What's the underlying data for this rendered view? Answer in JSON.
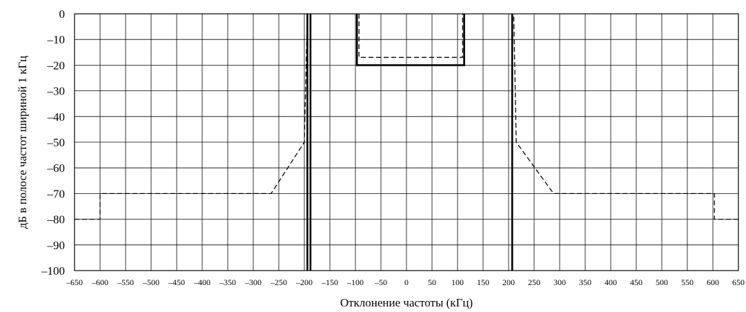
{
  "chart_data": {
    "type": "line",
    "title": "",
    "xlabel": "Отклонение частоты (кГц)",
    "ylabel": "дБ в полосе частот шириной 1 кГц",
    "xlim": [
      -650,
      650
    ],
    "ylim": [
      -100,
      0
    ],
    "x_ticks": [
      -650,
      -600,
      -550,
      -500,
      -450,
      -400,
      -350,
      -300,
      -250,
      -200,
      -150,
      -100,
      -50,
      0,
      50,
      100,
      150,
      200,
      250,
      300,
      350,
      400,
      450,
      500,
      550,
      600,
      650
    ],
    "x_tick_labels": [
      "–650",
      "–600",
      "–550",
      "–500",
      "–450",
      "–400",
      "–350",
      "–300",
      "–250",
      "–200",
      "–150",
      "–100",
      "–50",
      "0",
      "50",
      "100",
      "150",
      "200",
      "250",
      "300",
      "350",
      "400",
      "450",
      "500",
      "550",
      "600",
      "650"
    ],
    "y_ticks": [
      0,
      -10,
      -20,
      -30,
      -40,
      -50,
      -60,
      -70,
      -80,
      -90,
      -100
    ],
    "y_tick_labels": [
      "0",
      "–10",
      "–20",
      "–30",
      "–40",
      "–50",
      "–60",
      "–70",
      "–80",
      "–90",
      "–100"
    ],
    "grid": true,
    "series": [
      {
        "style": "solid",
        "segments": [
          [
            [
              -194,
              0
            ],
            [
              -194,
              -100
            ]
          ],
          [
            [
              -188,
              0
            ],
            [
              -188,
              -100
            ]
          ],
          [
            [
              207,
              0
            ],
            [
              207,
              -100
            ]
          ],
          [
            [
              -97,
              0
            ],
            [
              -97,
              -20
            ],
            [
              113,
              -20
            ],
            [
              113,
              0
            ]
          ]
        ]
      },
      {
        "style": "dashed",
        "segments": [
          [
            [
              -650,
              -80
            ],
            [
              -600,
              -80
            ],
            [
              -600,
              -70
            ],
            [
              -265,
              -70
            ],
            [
              -200,
              -50
            ],
            [
              -194,
              0
            ]
          ],
          [
            [
              650,
              -80
            ],
            [
              603,
              -80
            ],
            [
              603,
              -70
            ],
            [
              288,
              -70
            ],
            [
              215,
              -50
            ],
            [
              210,
              0
            ]
          ],
          [
            [
              -93,
              0
            ],
            [
              -93,
              -17
            ],
            [
              110,
              -17
            ],
            [
              110,
              0
            ]
          ]
        ]
      }
    ]
  }
}
